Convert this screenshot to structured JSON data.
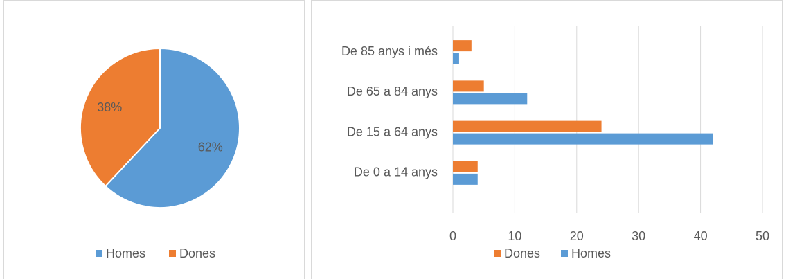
{
  "chart_data": [
    {
      "type": "pie",
      "categories": [
        "Homes",
        "Dones"
      ],
      "values": [
        62,
        38
      ],
      "value_labels": [
        "62%",
        "38%"
      ],
      "colors": [
        "#5b9bd5",
        "#ed7d31"
      ],
      "legend": "bottom"
    },
    {
      "type": "bar",
      "orientation": "horizontal",
      "categories": [
        "De 0 a 14 anys",
        "De 15 a 64 anys",
        "De 65 a 84 anys",
        "De 85 anys i més"
      ],
      "series": [
        {
          "name": "Homes",
          "color": "#5b9bd5",
          "values": [
            4,
            42,
            12,
            1
          ]
        },
        {
          "name": "Dones",
          "color": "#ed7d31",
          "values": [
            4,
            24,
            5,
            3
          ]
        }
      ],
      "xlim": [
        0,
        50
      ],
      "xticks": [
        0,
        10,
        20,
        30,
        40,
        50
      ],
      "grid": true,
      "legend": "bottom"
    }
  ]
}
